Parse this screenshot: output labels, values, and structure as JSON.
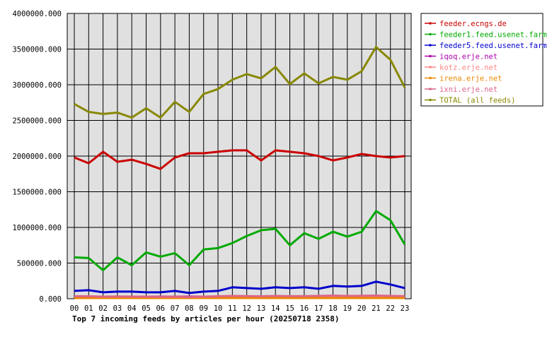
{
  "chart_data": {
    "type": "line",
    "title": "Top 7 incoming feeds by articles per hour (20250718 2358)",
    "categories": [
      "00",
      "01",
      "02",
      "03",
      "04",
      "05",
      "06",
      "07",
      "08",
      "09",
      "10",
      "11",
      "12",
      "13",
      "14",
      "15",
      "16",
      "17",
      "18",
      "19",
      "20",
      "21",
      "22",
      "23"
    ],
    "ylim": [
      0,
      4000000
    ],
    "yticks": [
      "0.000",
      "500000.000",
      "1000000.000",
      "1500000.000",
      "2000000.000",
      "2500000.000",
      "3000000.000",
      "3500000.000",
      "4000000.000"
    ],
    "grid": true,
    "legend_position": "right",
    "series": [
      {
        "name": "feeder.ecngs.de",
        "color": "#cc0000",
        "values": [
          1980000,
          1900000,
          2060000,
          1920000,
          1950000,
          1890000,
          1820000,
          1980000,
          2040000,
          2040000,
          2060000,
          2080000,
          2080000,
          1940000,
          2080000,
          2060000,
          2040000,
          2000000,
          1940000,
          1980000,
          2030000,
          2000000,
          1980000,
          2000000
        ]
      },
      {
        "name": "feeder1.feed.usenet.farm",
        "color": "#00aa00",
        "values": [
          580000,
          570000,
          400000,
          580000,
          470000,
          650000,
          590000,
          640000,
          470000,
          690000,
          710000,
          780000,
          880000,
          960000,
          980000,
          750000,
          920000,
          840000,
          940000,
          870000,
          940000,
          1230000,
          1100000,
          760000
        ]
      },
      {
        "name": "feeder5.feed.usenet.farm",
        "color": "#0000cc",
        "values": [
          110000,
          120000,
          90000,
          100000,
          100000,
          90000,
          90000,
          110000,
          80000,
          100000,
          110000,
          160000,
          150000,
          140000,
          160000,
          150000,
          160000,
          140000,
          180000,
          170000,
          180000,
          240000,
          200000,
          150000
        ]
      },
      {
        "name": "iqoq.erje.net",
        "color": "#aa00aa",
        "values": [
          30000,
          30000,
          30000,
          30000,
          30000,
          30000,
          30000,
          30000,
          30000,
          30000,
          30000,
          30000,
          30000,
          30000,
          30000,
          30000,
          30000,
          30000,
          30000,
          30000,
          30000,
          30000,
          30000,
          30000
        ]
      },
      {
        "name": "kotz.erje.net",
        "color": "#ff8888",
        "values": [
          20000,
          20000,
          20000,
          20000,
          20000,
          20000,
          20000,
          20000,
          20000,
          20000,
          20000,
          20000,
          20000,
          20000,
          20000,
          20000,
          20000,
          20000,
          20000,
          20000,
          20000,
          20000,
          20000,
          20000
        ]
      },
      {
        "name": "irena.erje.net",
        "color": "#ee8800",
        "values": [
          10000,
          10000,
          10000,
          10000,
          10000,
          10000,
          10000,
          10000,
          10000,
          10000,
          10000,
          10000,
          10000,
          10000,
          10000,
          10000,
          10000,
          10000,
          10000,
          10000,
          10000,
          10000,
          10000,
          10000
        ]
      },
      {
        "name": "ixni.erje.net",
        "color": "#dd6688",
        "values": [
          35000,
          35000,
          30000,
          32000,
          30000,
          30000,
          28000,
          30000,
          25000,
          30000,
          35000,
          40000,
          38000,
          35000,
          40000,
          36000,
          38000,
          40000,
          45000,
          40000,
          42000,
          45000,
          40000,
          38000
        ]
      },
      {
        "name": "TOTAL (all feeds)",
        "color": "#888800",
        "values": [
          2730000,
          2620000,
          2590000,
          2610000,
          2540000,
          2670000,
          2540000,
          2760000,
          2620000,
          2870000,
          2940000,
          3070000,
          3150000,
          3090000,
          3250000,
          3010000,
          3160000,
          3020000,
          3110000,
          3070000,
          3190000,
          3530000,
          3350000,
          2960000
        ]
      }
    ]
  }
}
